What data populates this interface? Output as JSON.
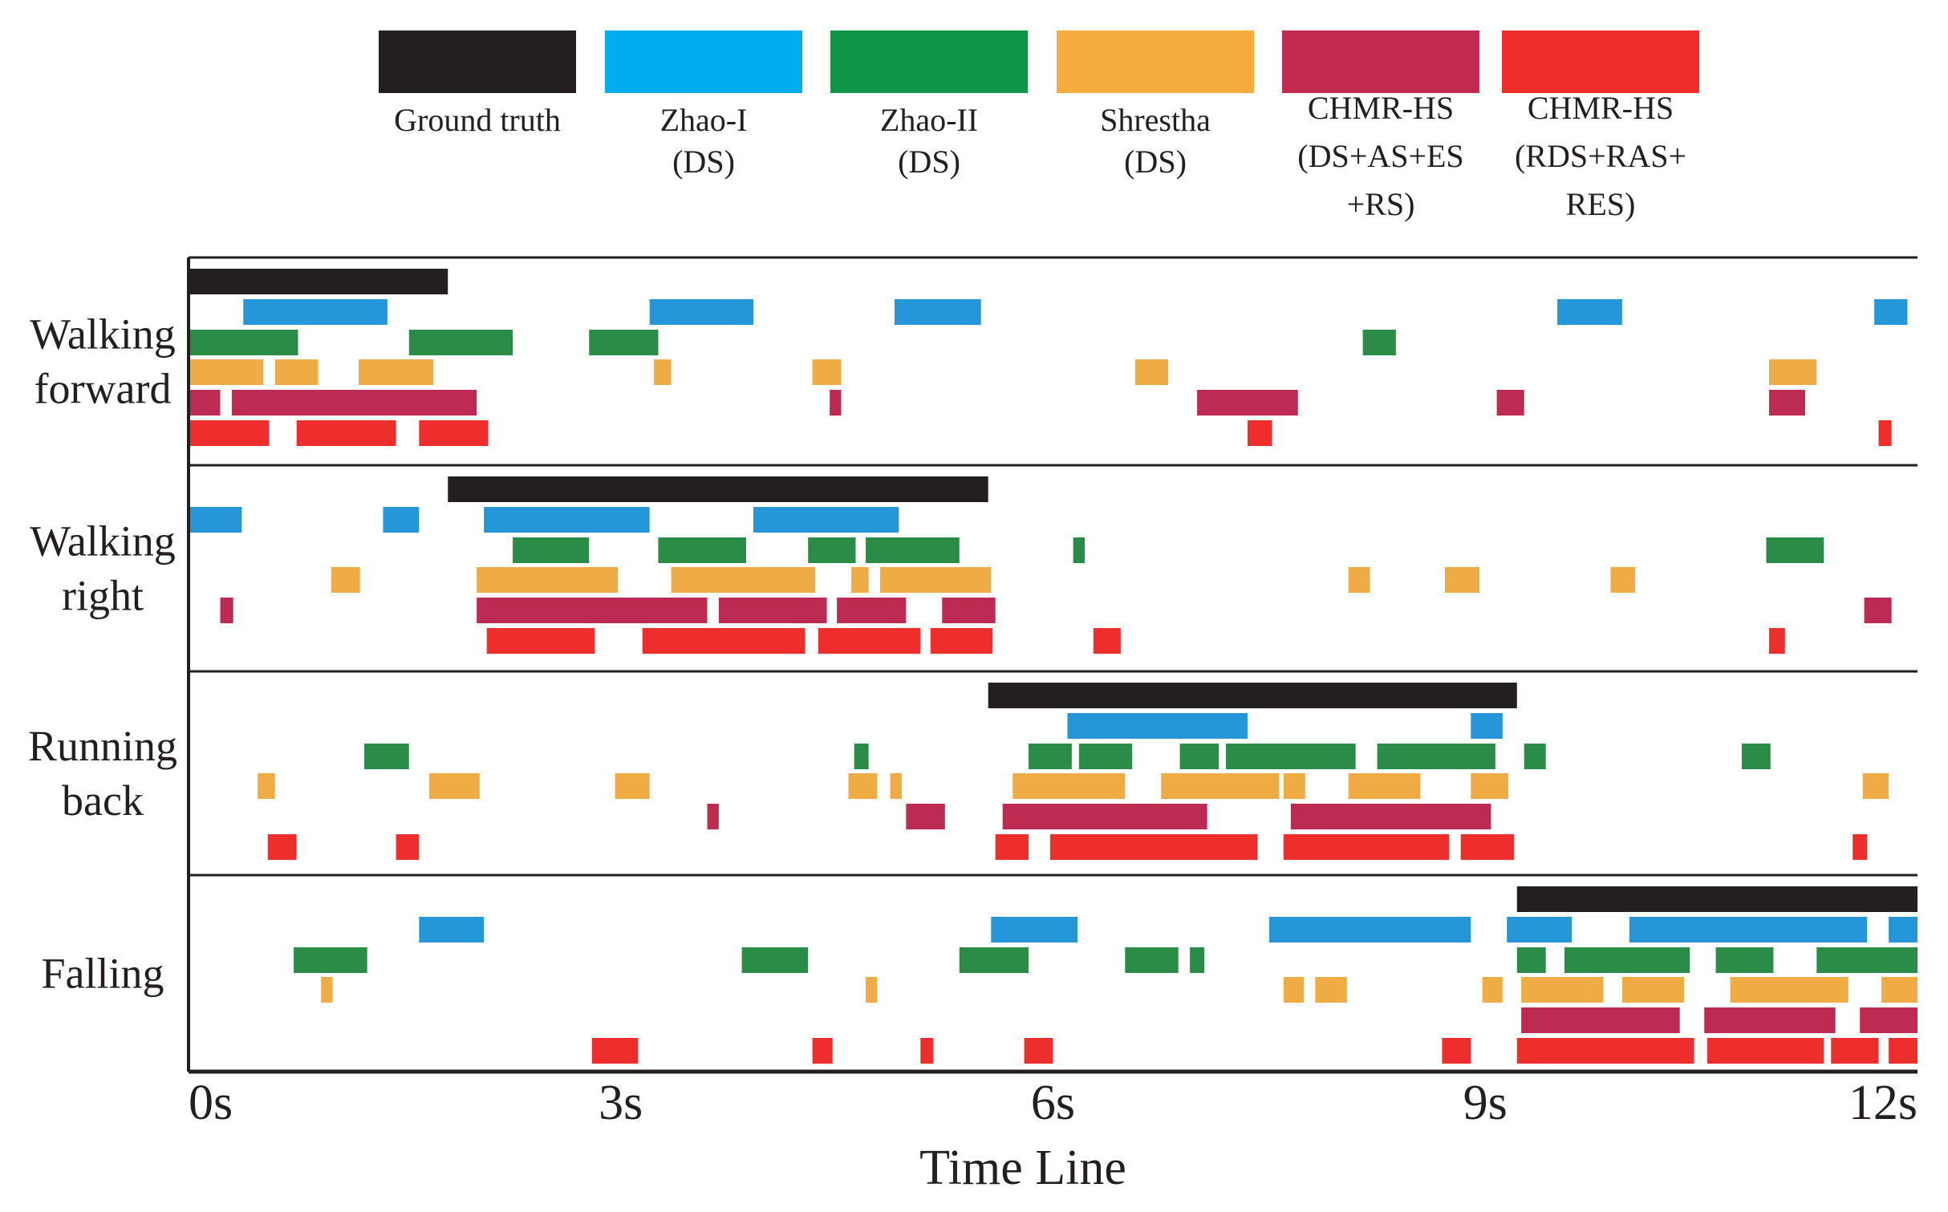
{
  "chart_data": {
    "type": "timeline",
    "xlabel": "Time Line",
    "xlim": [
      0,
      12
    ],
    "ticks": [
      {
        "value": 0,
        "label": "0s"
      },
      {
        "value": 3,
        "label": "3s"
      },
      {
        "value": 6,
        "label": "6s"
      },
      {
        "value": 9,
        "label": "9s"
      },
      {
        "value": 12,
        "label": "12s"
      }
    ],
    "legend": [
      {
        "key": "gt",
        "color": "#231f20",
        "lines": [
          "Ground truth"
        ]
      },
      {
        "key": "zhao1",
        "color": "#00aeef",
        "lines": [
          "Zhao-I",
          "(DS)"
        ]
      },
      {
        "key": "zhao2",
        "color": "#0f9548",
        "lines": [
          "Zhao-II",
          "(DS)"
        ]
      },
      {
        "key": "shrestha",
        "color": "#f7ac3f",
        "lines": [
          "Shrestha",
          "(DS)"
        ]
      },
      {
        "key": "chmr1",
        "color": "#c1294e",
        "lines": [
          "CHMR-HS",
          "(DS+AS+ES",
          "+RS)"
        ]
      },
      {
        "key": "chmr2",
        "color": "#ee2c2b",
        "lines": [
          "CHMR-HS",
          "(RDS+RAS+",
          "RES)"
        ]
      }
    ],
    "series_colors": {
      "gt": "#231f20",
      "zhao1": "#2596d8",
      "zhao2": "#2b8c47",
      "shrestha": "#efac44",
      "chmr1": "#bd2b52",
      "chmr2": "#ee2d2d"
    },
    "activities": [
      {
        "label_lines": [
          "Walking",
          "forward"
        ],
        "series": {
          "gt": [
            [
              0.0,
              1.8
            ]
          ],
          "zhao1": [
            [
              0.38,
              1.38
            ],
            [
              3.2,
              3.92
            ],
            [
              4.9,
              5.5
            ],
            [
              9.5,
              9.95
            ],
            [
              11.7,
              11.93
            ]
          ],
          "zhao2": [
            [
              0.0,
              0.76
            ],
            [
              1.53,
              2.25
            ],
            [
              2.78,
              3.26
            ],
            [
              8.15,
              8.38
            ]
          ],
          "shrestha": [
            [
              0.0,
              0.52
            ],
            [
              0.6,
              0.9
            ],
            [
              1.18,
              1.7
            ],
            [
              3.23,
              3.35
            ],
            [
              4.33,
              4.53
            ],
            [
              6.57,
              6.8
            ],
            [
              10.97,
              11.3
            ]
          ],
          "chmr1": [
            [
              0.0,
              0.22
            ],
            [
              0.3,
              2.0
            ],
            [
              4.45,
              4.53
            ],
            [
              7.0,
              7.7
            ],
            [
              9.08,
              9.27
            ],
            [
              10.97,
              11.22
            ]
          ],
          "chmr2": [
            [
              0.0,
              0.56
            ],
            [
              0.75,
              1.44
            ],
            [
              1.6,
              2.08
            ],
            [
              7.35,
              7.52
            ],
            [
              11.73,
              11.82
            ]
          ]
        }
      },
      {
        "label_lines": [
          "Walking",
          "right"
        ],
        "series": {
          "gt": [
            [
              1.8,
              5.55
            ]
          ],
          "zhao1": [
            [
              0.0,
              0.37
            ],
            [
              1.35,
              1.6
            ],
            [
              2.05,
              3.2
            ],
            [
              3.92,
              4.93
            ]
          ],
          "zhao2": [
            [
              2.25,
              2.78
            ],
            [
              3.26,
              3.87
            ],
            [
              4.3,
              4.63
            ],
            [
              4.7,
              5.35
            ],
            [
              6.14,
              6.22
            ],
            [
              10.95,
              11.35
            ]
          ],
          "shrestha": [
            [
              0.99,
              1.19
            ],
            [
              2.0,
              2.98
            ],
            [
              3.35,
              4.35
            ],
            [
              4.6,
              4.72
            ],
            [
              4.8,
              5.57
            ],
            [
              8.05,
              8.2
            ],
            [
              8.72,
              8.96
            ],
            [
              9.87,
              10.04
            ]
          ],
          "chmr1": [
            [
              0.22,
              0.31
            ],
            [
              2.0,
              3.6
            ],
            [
              3.68,
              4.43
            ],
            [
              4.5,
              4.98
            ],
            [
              5.23,
              5.6
            ],
            [
              11.63,
              11.82
            ]
          ],
          "chmr2": [
            [
              2.07,
              2.82
            ],
            [
              3.15,
              4.28
            ],
            [
              4.37,
              5.08
            ],
            [
              5.15,
              5.58
            ],
            [
              6.28,
              6.47
            ],
            [
              10.97,
              11.08
            ]
          ]
        }
      },
      {
        "label_lines": [
          "Running",
          "back"
        ],
        "series": {
          "gt": [
            [
              5.55,
              9.22
            ]
          ],
          "zhao1": [
            [
              6.1,
              7.35
            ],
            [
              8.9,
              9.12
            ]
          ],
          "zhao2": [
            [
              1.22,
              1.53
            ],
            [
              4.62,
              4.72
            ],
            [
              5.83,
              6.13
            ],
            [
              6.18,
              6.55
            ],
            [
              6.88,
              7.15
            ],
            [
              7.2,
              8.1
            ],
            [
              8.25,
              9.07
            ],
            [
              9.27,
              9.42
            ],
            [
              10.78,
              10.98
            ]
          ],
          "shrestha": [
            [
              0.48,
              0.6
            ],
            [
              1.67,
              2.02
            ],
            [
              2.96,
              3.2
            ],
            [
              4.58,
              4.78
            ],
            [
              4.87,
              4.95
            ],
            [
              5.72,
              6.5
            ],
            [
              6.75,
              7.57
            ],
            [
              7.6,
              7.75
            ],
            [
              8.05,
              8.55
            ],
            [
              8.9,
              9.16
            ],
            [
              11.62,
              11.8
            ]
          ],
          "chmr1": [
            [
              3.6,
              3.68
            ],
            [
              4.98,
              5.25
            ],
            [
              5.65,
              7.07
            ],
            [
              7.65,
              9.04
            ]
          ],
          "chmr2": [
            [
              0.55,
              0.75
            ],
            [
              1.44,
              1.6
            ],
            [
              5.6,
              5.83
            ],
            [
              5.98,
              7.42
            ],
            [
              7.6,
              8.75
            ],
            [
              8.83,
              9.2
            ],
            [
              11.55,
              11.65
            ]
          ]
        }
      },
      {
        "label_lines": [
          "Falling"
        ],
        "series": {
          "gt": [
            [
              9.22,
              12.0
            ]
          ],
          "zhao1": [
            [
              1.6,
              2.05
            ],
            [
              5.57,
              6.17
            ],
            [
              7.5,
              8.9
            ],
            [
              9.15,
              9.6
            ],
            [
              10.0,
              11.65
            ],
            [
              11.8,
              12.0
            ]
          ],
          "zhao2": [
            [
              0.73,
              1.24
            ],
            [
              3.84,
              4.3
            ],
            [
              5.35,
              5.83
            ],
            [
              6.5,
              6.87
            ],
            [
              6.95,
              7.05
            ],
            [
              9.22,
              9.42
            ],
            [
              9.55,
              10.42
            ],
            [
              10.6,
              11.0
            ],
            [
              11.3,
              12.0
            ]
          ],
          "shrestha": [
            [
              0.92,
              1.0
            ],
            [
              4.7,
              4.78
            ],
            [
              7.6,
              7.74
            ],
            [
              7.82,
              8.04
            ],
            [
              8.98,
              9.12
            ],
            [
              9.25,
              9.82
            ],
            [
              9.95,
              10.38
            ],
            [
              10.7,
              11.52
            ],
            [
              11.75,
              12.0
            ]
          ],
          "chmr1": [
            [
              9.25,
              10.35
            ],
            [
              10.52,
              11.43
            ],
            [
              11.6,
              12.0
            ]
          ],
          "chmr2": [
            [
              2.8,
              3.12
            ],
            [
              4.33,
              4.47
            ],
            [
              5.08,
              5.17
            ],
            [
              5.8,
              6.0
            ],
            [
              8.7,
              8.9
            ],
            [
              9.22,
              10.45
            ],
            [
              10.54,
              11.35
            ],
            [
              11.4,
              11.73
            ],
            [
              11.8,
              12.0
            ]
          ]
        }
      }
    ]
  }
}
